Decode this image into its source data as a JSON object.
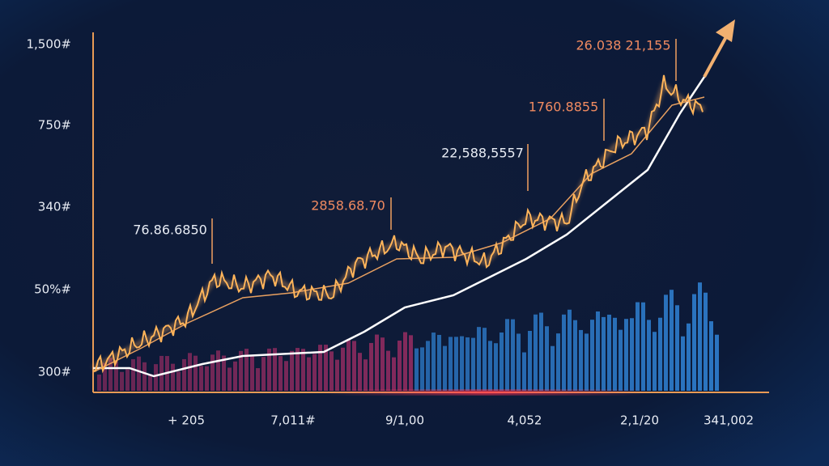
{
  "y_axis_labels": [
    "1,500#",
    "750#",
    "340#",
    "50%#",
    "300#"
  ],
  "x_axis_labels": [
    "+ 205",
    "7,011#",
    "9/1,00",
    "4,052",
    "2,1/20",
    "341,002"
  ],
  "annotations": [
    "76.86.6850",
    "2858.68.70",
    "22,588,5557",
    "1760.8855",
    "26.038 21,155"
  ]
}
